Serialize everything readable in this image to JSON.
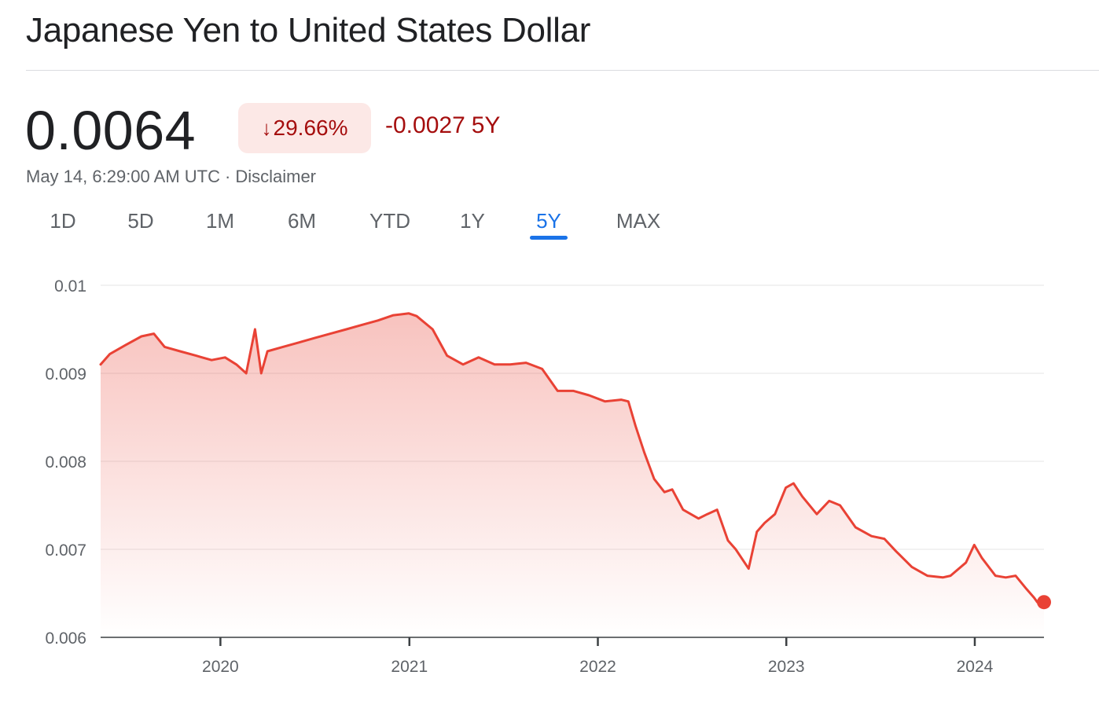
{
  "header": {
    "title": "Japanese Yen to United States Dollar"
  },
  "quote": {
    "price": "0.0064",
    "percent_change": "29.66%",
    "direction_icon": "arrow-down-icon",
    "abs_change": "-0.0027",
    "period": "5Y",
    "timestamp": "May 14, 6:29:00 AM UTC",
    "separator": "·",
    "disclaimer": "Disclaimer"
  },
  "tabs": [
    {
      "label": "1D",
      "active": false
    },
    {
      "label": "5D",
      "active": false
    },
    {
      "label": "1M",
      "active": false
    },
    {
      "label": "6M",
      "active": false
    },
    {
      "label": "YTD",
      "active": false
    },
    {
      "label": "1Y",
      "active": false
    },
    {
      "label": "5Y",
      "active": true
    },
    {
      "label": "MAX",
      "active": false
    }
  ],
  "colors": {
    "line": "#e94235",
    "negative_text": "#a50e0e",
    "negative_chip_bg": "#fce8e6",
    "active_tab": "#1a73e8"
  },
  "chart_data": {
    "type": "area",
    "title": "",
    "xlabel": "",
    "ylabel": "",
    "ylim": [
      0.006,
      0.01
    ],
    "y_ticks": [
      "0.01",
      "0.009",
      "0.008",
      "0.007",
      "0.006"
    ],
    "x_ticks": [
      "2020",
      "2021",
      "2022",
      "2023",
      "2024"
    ],
    "grid": true,
    "series": [
      {
        "x": [
          "2019-05-14",
          "2019-06-01",
          "2019-07-01",
          "2019-08-01",
          "2019-08-25",
          "2019-09-15",
          "2019-10-15",
          "2019-11-15",
          "2019-12-15",
          "2020-01-10",
          "2020-02-01",
          "2020-02-20",
          "2020-03-08",
          "2020-03-20",
          "2020-04-01",
          "2020-05-01",
          "2020-06-01",
          "2020-07-01",
          "2020-08-01",
          "2020-09-01",
          "2020-10-01",
          "2020-11-01",
          "2020-12-01",
          "2020-12-31",
          "2021-01-15",
          "2021-02-15",
          "2021-03-15",
          "2021-04-15",
          "2021-05-15",
          "2021-06-15",
          "2021-07-15",
          "2021-08-15",
          "2021-09-15",
          "2021-10-15",
          "2021-11-15",
          "2021-12-15",
          "2022-01-15",
          "2022-02-15",
          "2022-03-01",
          "2022-03-15",
          "2022-04-01",
          "2022-04-20",
          "2022-05-10",
          "2022-05-25",
          "2022-06-15",
          "2022-07-15",
          "2022-08-01",
          "2022-08-20",
          "2022-09-10",
          "2022-09-25",
          "2022-10-20",
          "2022-11-05",
          "2022-11-20",
          "2022-12-10",
          "2022-12-31",
          "2023-01-15",
          "2023-02-01",
          "2023-03-01",
          "2023-03-25",
          "2023-04-15",
          "2023-05-15",
          "2023-06-15",
          "2023-07-10",
          "2023-08-01",
          "2023-09-01",
          "2023-10-01",
          "2023-10-31",
          "2023-11-15",
          "2023-12-15",
          "2023-12-31",
          "2024-01-15",
          "2024-02-10",
          "2024-03-01",
          "2024-03-20",
          "2024-04-10",
          "2024-04-25",
          "2024-05-01",
          "2024-05-14"
        ],
        "y": [
          0.0091,
          0.00922,
          0.00932,
          0.00942,
          0.00945,
          0.0093,
          0.00925,
          0.0092,
          0.00915,
          0.00918,
          0.0091,
          0.009,
          0.0095,
          0.009,
          0.00925,
          0.0093,
          0.00935,
          0.0094,
          0.00945,
          0.0095,
          0.00955,
          0.0096,
          0.00966,
          0.00968,
          0.00965,
          0.0095,
          0.0092,
          0.0091,
          0.00918,
          0.0091,
          0.0091,
          0.00912,
          0.00905,
          0.0088,
          0.0088,
          0.00875,
          0.00868,
          0.0087,
          0.00868,
          0.0084,
          0.0081,
          0.0078,
          0.00765,
          0.00768,
          0.00745,
          0.00735,
          0.0074,
          0.00745,
          0.0071,
          0.007,
          0.00678,
          0.0072,
          0.0073,
          0.0074,
          0.0077,
          0.00775,
          0.0076,
          0.0074,
          0.00755,
          0.0075,
          0.00725,
          0.00715,
          0.00712,
          0.00698,
          0.0068,
          0.0067,
          0.00668,
          0.0067,
          0.00685,
          0.00705,
          0.0069,
          0.0067,
          0.00668,
          0.0067,
          0.00655,
          0.00645,
          0.0064,
          0.0064
        ]
      }
    ]
  }
}
